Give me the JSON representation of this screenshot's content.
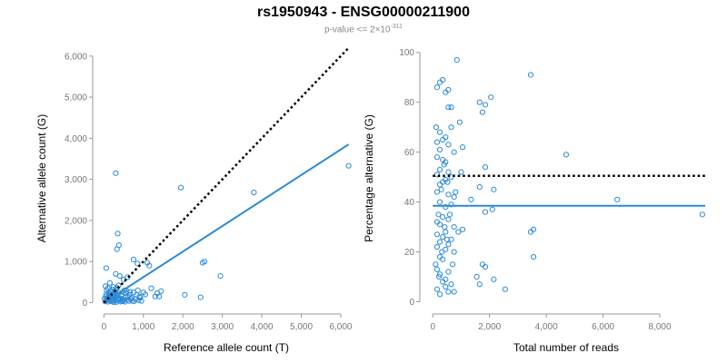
{
  "title": "rs1950943 - ENSG00000211900",
  "subtitle": {
    "prefix": "p-value <= 2",
    "times": "×",
    "base": "10",
    "exponent": "-311"
  },
  "colors": {
    "points": "#2b8ad6",
    "fit_line": "#2b8ad6",
    "reference_line": "#000000"
  },
  "chart_data": [
    {
      "type": "scatter",
      "title": "",
      "xlabel": "Reference allele count (T)",
      "ylabel": "Alternative allele count (G)",
      "xlim": [
        -100,
        6300
      ],
      "ylim": [
        -100,
        6150
      ],
      "xticks": [
        0,
        1000,
        2000,
        3000,
        4000,
        5000,
        6000
      ],
      "xtick_labels": [
        "0",
        "1,000",
        "2,000",
        "3,000",
        "4,000",
        "5,000",
        "6,000"
      ],
      "yticks": [
        0,
        1000,
        2000,
        3000,
        4000,
        5000,
        6000
      ],
      "ytick_labels": [
        "0",
        "1,000",
        "2,000",
        "3,000",
        "4,000",
        "5,000",
        "6,000"
      ],
      "grid": false,
      "points": [
        [
          300,
          3150
        ],
        [
          350,
          1680
        ],
        [
          380,
          1400
        ],
        [
          330,
          1300
        ],
        [
          60,
          840
        ],
        [
          1950,
          2800
        ],
        [
          3800,
          2680
        ],
        [
          6200,
          3330
        ],
        [
          2550,
          1000
        ],
        [
          2500,
          970
        ],
        [
          2950,
          650
        ],
        [
          750,
          1050
        ],
        [
          850,
          950
        ],
        [
          1100,
          970
        ],
        [
          300,
          700
        ],
        [
          400,
          650
        ],
        [
          500,
          560
        ],
        [
          600,
          620
        ],
        [
          1450,
          280
        ],
        [
          1350,
          230
        ],
        [
          1400,
          150
        ],
        [
          1300,
          150
        ],
        [
          2050,
          190
        ],
        [
          2450,
          130
        ],
        [
          150,
          480
        ],
        [
          100,
          350
        ],
        [
          120,
          250
        ],
        [
          200,
          200
        ],
        [
          50,
          150
        ],
        [
          80,
          60
        ],
        [
          150,
          80
        ],
        [
          220,
          120
        ],
        [
          260,
          100
        ],
        [
          300,
          50
        ],
        [
          350,
          90
        ],
        [
          400,
          110
        ],
        [
          450,
          180
        ],
        [
          500,
          60
        ],
        [
          550,
          140
        ],
        [
          600,
          70
        ],
        [
          650,
          190
        ],
        [
          700,
          120
        ],
        [
          750,
          250
        ],
        [
          800,
          80
        ],
        [
          900,
          150
        ],
        [
          1000,
          250
        ],
        [
          100,
          20
        ],
        [
          180,
          30
        ],
        [
          250,
          10
        ],
        [
          320,
          15
        ],
        [
          420,
          25
        ],
        [
          480,
          35
        ],
        [
          520,
          300
        ],
        [
          580,
          280
        ],
        [
          640,
          40
        ],
        [
          720,
          45
        ],
        [
          40,
          400
        ],
        [
          70,
          300
        ],
        [
          130,
          180
        ],
        [
          170,
          220
        ],
        [
          210,
          320
        ],
        [
          240,
          380
        ],
        [
          280,
          260
        ],
        [
          340,
          200
        ],
        [
          380,
          240
        ],
        [
          440,
          160
        ],
        [
          470,
          90
        ],
        [
          20,
          100
        ],
        [
          30,
          30
        ],
        [
          90,
          120
        ],
        [
          140,
          140
        ],
        [
          190,
          60
        ],
        [
          230,
          40
        ],
        [
          270,
          170
        ],
        [
          310,
          130
        ],
        [
          360,
          60
        ],
        [
          460,
          40
        ],
        [
          530,
          20
        ],
        [
          610,
          130
        ],
        [
          680,
          90
        ],
        [
          760,
          30
        ],
        [
          830,
          190
        ],
        [
          880,
          60
        ],
        [
          950,
          40
        ],
        [
          1050,
          200
        ],
        [
          1150,
          900
        ],
        [
          1200,
          350
        ],
        [
          60,
          200
        ],
        [
          110,
          90
        ],
        [
          160,
          270
        ],
        [
          205,
          110
        ],
        [
          255,
          70
        ],
        [
          290,
          300
        ],
        [
          330,
          360
        ],
        [
          370,
          420
        ],
        [
          410,
          80
        ],
        [
          560,
          230
        ],
        [
          660,
          260
        ],
        [
          860,
          300
        ],
        [
          920,
          120
        ]
      ],
      "fit_line": [
        [
          0,
          0
        ],
        [
          6200,
          3850
        ]
      ],
      "reference_line": [
        [
          0,
          0
        ],
        [
          6200,
          6200
        ]
      ]
    },
    {
      "type": "scatter",
      "title": "",
      "xlabel": "Total number of reads",
      "ylabel": "Percentage alternative (G)",
      "xlim": [
        -200,
        9600
      ],
      "ylim": [
        -2,
        101
      ],
      "xticks": [
        0,
        2000,
        4000,
        6000,
        8000
      ],
      "xtick_labels": [
        "0",
        "2,000",
        "4,000",
        "6,000",
        "8,000"
      ],
      "yticks": [
        0,
        20,
        40,
        60,
        80,
        100
      ],
      "ytick_labels": [
        "0",
        "20",
        "40",
        "60",
        "80",
        "100"
      ],
      "grid": false,
      "points": [
        [
          850,
          97
        ],
        [
          3450,
          91
        ],
        [
          350,
          89
        ],
        [
          250,
          88
        ],
        [
          150,
          86
        ],
        [
          550,
          85
        ],
        [
          450,
          84
        ],
        [
          2050,
          82
        ],
        [
          1650,
          80
        ],
        [
          1850,
          79
        ],
        [
          650,
          78
        ],
        [
          550,
          78
        ],
        [
          1750,
          76
        ],
        [
          950,
          72
        ],
        [
          650,
          70
        ],
        [
          250,
          68
        ],
        [
          450,
          66
        ],
        [
          350,
          65
        ],
        [
          150,
          64
        ],
        [
          550,
          63
        ],
        [
          1050,
          62
        ],
        [
          250,
          61
        ],
        [
          750,
          60
        ],
        [
          4700,
          59
        ],
        [
          150,
          58
        ],
        [
          350,
          57
        ],
        [
          450,
          56
        ],
        [
          1850,
          54
        ],
        [
          250,
          53
        ],
        [
          550,
          52
        ],
        [
          150,
          51
        ],
        [
          650,
          50
        ],
        [
          450,
          49
        ],
        [
          350,
          48
        ],
        [
          250,
          47
        ],
        [
          1650,
          46
        ],
        [
          2150,
          45
        ],
        [
          150,
          44
        ],
        [
          550,
          43
        ],
        [
          750,
          42
        ],
        [
          1350,
          41
        ],
        [
          6500,
          41
        ],
        [
          250,
          40
        ],
        [
          650,
          39
        ],
        [
          450,
          38
        ],
        [
          2100,
          37
        ],
        [
          1850,
          36
        ],
        [
          9500,
          35
        ],
        [
          350,
          34
        ],
        [
          550,
          33
        ],
        [
          150,
          32
        ],
        [
          250,
          31
        ],
        [
          750,
          30
        ],
        [
          1050,
          29
        ],
        [
          3550,
          29
        ],
        [
          3450,
          28
        ],
        [
          450,
          28
        ],
        [
          150,
          27
        ],
        [
          350,
          26
        ],
        [
          650,
          25
        ],
        [
          250,
          24
        ],
        [
          550,
          23
        ],
        [
          150,
          22
        ],
        [
          450,
          21
        ],
        [
          750,
          20
        ],
        [
          3550,
          18
        ],
        [
          250,
          18
        ],
        [
          350,
          17
        ],
        [
          1750,
          15
        ],
        [
          1850,
          14
        ],
        [
          150,
          13
        ],
        [
          550,
          12
        ],
        [
          250,
          11
        ],
        [
          1550,
          10
        ],
        [
          2150,
          9
        ],
        [
          450,
          9
        ],
        [
          350,
          8
        ],
        [
          1650,
          7
        ],
        [
          650,
          7
        ],
        [
          2550,
          5
        ],
        [
          150,
          5
        ],
        [
          550,
          4
        ],
        [
          250,
          3
        ],
        [
          750,
          4
        ],
        [
          450,
          6
        ],
        [
          100,
          15
        ],
        [
          200,
          35
        ],
        [
          300,
          45
        ],
        [
          400,
          55
        ],
        [
          500,
          25
        ],
        [
          600,
          35
        ],
        [
          700,
          15
        ],
        [
          800,
          44
        ],
        [
          900,
          28
        ],
        [
          1000,
          52
        ],
        [
          120,
          70
        ],
        [
          220,
          10
        ],
        [
          320,
          20
        ],
        [
          420,
          30
        ],
        [
          520,
          48
        ]
      ],
      "fit_line": [
        [
          0,
          38.5
        ],
        [
          9600,
          38.5
        ]
      ],
      "reference_line": [
        [
          0,
          50.5
        ],
        [
          9600,
          50.5
        ]
      ]
    }
  ]
}
